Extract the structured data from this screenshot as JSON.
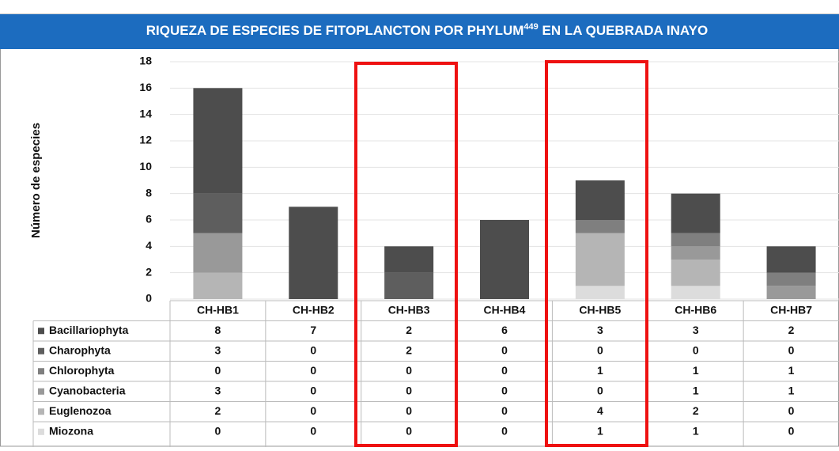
{
  "chart_data": {
    "type": "stacked_bar",
    "title": "RIQUEZA DE ESPECIES DE FITOPLANCTON POR PHYLUM",
    "title_sup": "449",
    "title_end": " EN LA QUEBRADA INAYO",
    "ylabel": "Número de especies",
    "categories": [
      "CH-HB1",
      "CH-HB2",
      "CH-HB3",
      "CH-HB4",
      "CH-HB5",
      "CH-HB6",
      "CH-HB7"
    ],
    "series": [
      {
        "name": "Bacillariophyta",
        "color": "#4d4d4d",
        "values": [
          8,
          7,
          2,
          6,
          3,
          3,
          2
        ]
      },
      {
        "name": "Charophyta",
        "color": "#5e5e5e",
        "values": [
          3,
          0,
          2,
          0,
          0,
          0,
          0
        ]
      },
      {
        "name": "Chlorophyta",
        "color": "#7f7f7f",
        "values": [
          0,
          0,
          0,
          0,
          1,
          1,
          1
        ]
      },
      {
        "name": "Cyanobacteria",
        "color": "#999999",
        "values": [
          3,
          0,
          0,
          0,
          0,
          1,
          1
        ]
      },
      {
        "name": "Euglenozoa",
        "color": "#b5b5b5",
        "values": [
          2,
          0,
          0,
          0,
          4,
          2,
          0
        ]
      },
      {
        "name": "Miozona",
        "color": "#dcdcdc",
        "values": [
          0,
          0,
          0,
          0,
          1,
          1,
          0
        ]
      }
    ],
    "ylim": [
      0,
      18
    ],
    "yticks": [
      0,
      2,
      4,
      6,
      8,
      10,
      12,
      14,
      16,
      18
    ],
    "grid": true
  }
}
